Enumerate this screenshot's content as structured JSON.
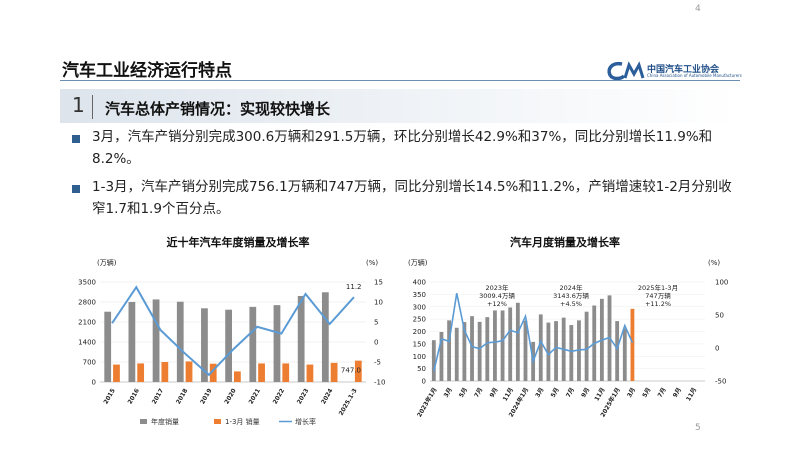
{
  "page": {
    "top_number": "4",
    "bottom_number": "5"
  },
  "header": {
    "title": "汽车工业经济运行特点",
    "logo_cn": "中国汽车工业协会",
    "logo_en": "China Association of Automobile Manufacturers"
  },
  "section": {
    "number": "1",
    "title": "汽车总体产销情况：实现较快增长"
  },
  "bullets": [
    "3月，汽车产销分别完成300.6万辆和291.5万辆，环比分别增长42.9%和37%，同比分别增长11.9%和8.2%。",
    "1-3月，汽车产销分别完成756.1万辆和747万辆，同比分别增长14.5%和11.2%，产销增速较1-2月分别收窄1.7和1.9个百分点。"
  ],
  "colors": {
    "annual": "#8c8c8c",
    "q1": "#ed7d31",
    "growth": "#5b9bd5",
    "accent": "#2f5f8f"
  },
  "chart_data": [
    {
      "type": "bar",
      "title": "近十年汽车年度销量及增长率",
      "ylabel_left": "(万辆)",
      "ylabel_right": "(%)",
      "categories": [
        "2015",
        "2016",
        "2017",
        "2018",
        "2019",
        "2020",
        "2021",
        "2022",
        "2023",
        "2024",
        "2025.1-3"
      ],
      "series": [
        {
          "name": "年度销量",
          "kind": "bar",
          "axis": "left",
          "values": [
            2460,
            2800,
            2890,
            2810,
            2580,
            2530,
            2630,
            2690,
            3010,
            3140,
            null
          ]
        },
        {
          "name": "1-3月 销量",
          "kind": "bar",
          "axis": "left",
          "values": [
            610,
            650,
            700,
            720,
            640,
            370,
            650,
            650,
            610,
            670,
            747
          ]
        },
        {
          "name": "增长率",
          "kind": "line",
          "axis": "right",
          "values": [
            4.7,
            13.7,
            3.0,
            -2.8,
            -8.2,
            -1.9,
            3.8,
            2.1,
            12.0,
            4.5,
            11.2
          ]
        }
      ],
      "annotations": {
        "growth_last": "11.2",
        "q1_last": "747.0"
      },
      "ylim_left": [
        0,
        3500
      ],
      "yticks_left": [
        0,
        700,
        1400,
        2100,
        2800,
        3500
      ],
      "yticks_left_labels": [
        "0",
        "700",
        "1400",
        "2100",
        "2800",
        "3500"
      ],
      "ylim_right": [
        -10,
        15
      ],
      "yticks_right": [
        -10,
        -5,
        0,
        5,
        10,
        15
      ],
      "yticks_right_labels": [
        "-10",
        "-5",
        "0",
        "5",
        "10",
        "15"
      ],
      "legend": "bottom"
    },
    {
      "type": "bar",
      "title": "汽车月度销量及增长率",
      "ylabel_left": "(万辆)",
      "ylabel_right": "(%)",
      "categories": [
        "2023年1月",
        "2月",
        "3月",
        "4月",
        "5月",
        "6月",
        "7月",
        "8月",
        "9月",
        "10月",
        "11月",
        "12月",
        "2024年1月",
        "2月",
        "3月",
        "4月",
        "5月",
        "6月",
        "7月",
        "8月",
        "9月",
        "10月",
        "11月",
        "12月",
        "2025年1月",
        "2月",
        "3月",
        "4月",
        "5月",
        "6月",
        "7月",
        "8月",
        "9月",
        "10月",
        "11月",
        "12月"
      ],
      "tick_labels": [
        "2023年1月",
        "3月",
        "5月",
        "7月",
        "9月",
        "11月",
        "2024年1月",
        "3月",
        "5月",
        "7月",
        "9月",
        "11月",
        "2025年1月",
        "3月",
        "5月",
        "7月",
        "9月",
        "11月"
      ],
      "series": [
        {
          "name": "月度销量",
          "kind": "bar",
          "axis": "left",
          "values": [
            165,
            198,
            245,
            215,
            238,
            262,
            239,
            258,
            285,
            285,
            297,
            316,
            244,
            158,
            269,
            236,
            242,
            256,
            226,
            245,
            280,
            305,
            332,
            346,
            242,
            212,
            291.5,
            null,
            null,
            null,
            null,
            null,
            null,
            null,
            null,
            null
          ]
        },
        {
          "name": "增长率",
          "kind": "line",
          "axis": "right",
          "values": [
            -35,
            14,
            10,
            83,
            27,
            2,
            -1,
            8,
            9,
            11,
            27,
            23,
            48,
            -20,
            10,
            -10,
            1,
            -2,
            -5,
            -3,
            -2,
            7,
            12,
            16,
            -1,
            34,
            8,
            null,
            null,
            null,
            null,
            null,
            null,
            null,
            null,
            null
          ]
        }
      ],
      "annotations": [
        {
          "year": "2023年",
          "total": "3009.4万辆",
          "growth": "+12%"
        },
        {
          "year": "2024年",
          "total": "3143.6万辆",
          "growth": "+4.5%"
        },
        {
          "year": "2025年1-3月",
          "total": "747万辆",
          "growth": "+11.2%"
        }
      ],
      "ylim_left": [
        0,
        400
      ],
      "yticks_left": [
        0,
        50,
        100,
        150,
        200,
        250,
        300,
        350,
        400
      ],
      "yticks_left_labels": [
        "0",
        "50",
        "100",
        "150",
        "200",
        "250",
        "300",
        "350",
        "400"
      ],
      "ylim_right": [
        -50,
        100
      ],
      "yticks_right": [
        -50,
        0,
        50,
        100
      ],
      "yticks_right_labels": [
        "-50",
        "0",
        "50",
        "100"
      ]
    }
  ]
}
